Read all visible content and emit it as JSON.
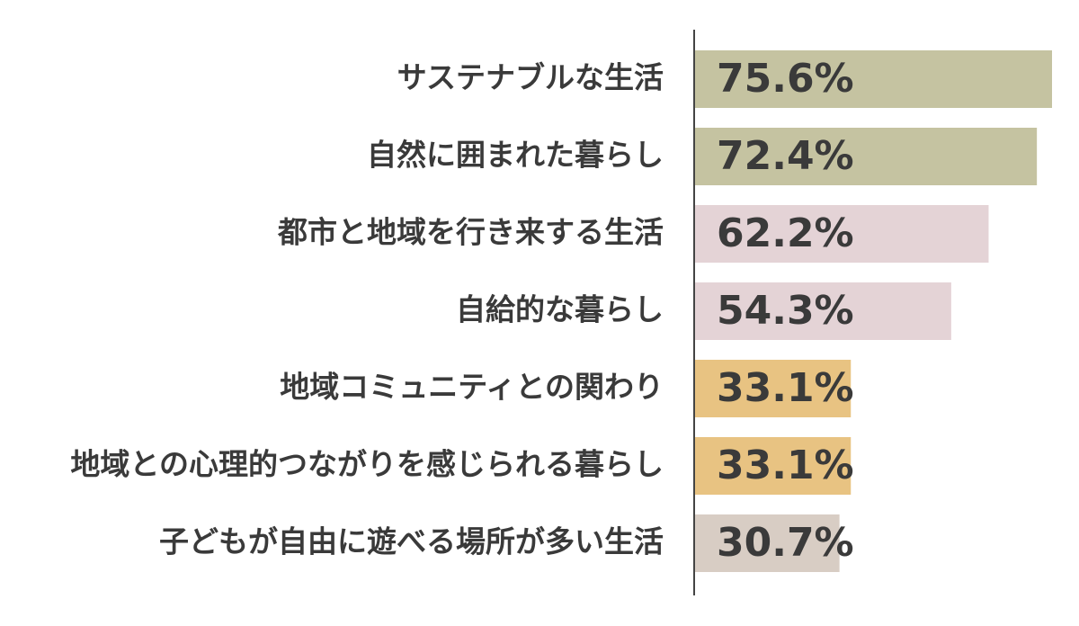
{
  "chart_data": {
    "type": "bar",
    "orientation": "horizontal",
    "categories": [
      "サステナブルな生活",
      "自然に囲まれた暮らし",
      "都市と地域を行き来する生活",
      "自給的な暮らし",
      "地域コミュニティとの関わり",
      "地域との心理的つながりを感じられる暮らし",
      "子どもが自由に遊べる場所が多い生活"
    ],
    "values": [
      75.6,
      72.4,
      62.2,
      54.3,
      33.1,
      33.1,
      30.7
    ],
    "value_labels": [
      "75.6%",
      "72.4%",
      "62.2%",
      "54.3%",
      "33.1%",
      "33.1%",
      "30.7%"
    ],
    "colors": [
      "#c5c3a1",
      "#c5c3a1",
      "#e4d3d6",
      "#e4d3d6",
      "#e8c382",
      "#e8c382",
      "#d8cdc4"
    ]
  }
}
